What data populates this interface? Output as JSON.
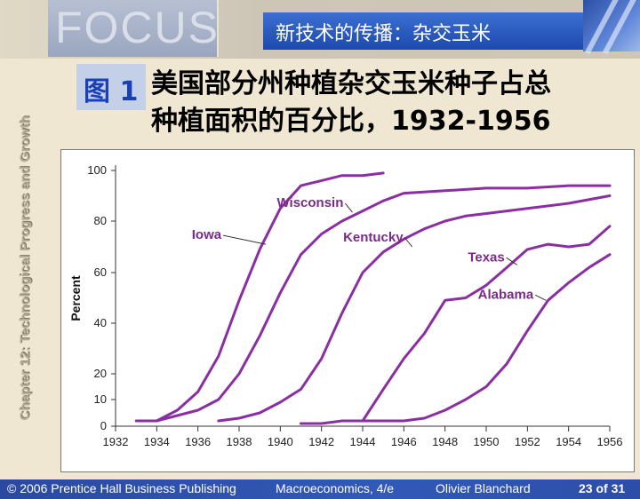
{
  "banner": {
    "focus_word": "FOCUS",
    "topic": "新技术的传播：杂交玉米"
  },
  "sidebar": {
    "vertical_title": "Chapter 12: Technological Progress and Growth"
  },
  "figure": {
    "label": "图 1",
    "title_line1": "美国部分州种植杂交玉米种子占总",
    "title_line2": "种植面积的百分比，1932-1956"
  },
  "chart_data": {
    "type": "line",
    "ylabel": "Percent",
    "xlim": [
      1932,
      1956
    ],
    "ylim": [
      0,
      100
    ],
    "x_ticks": [
      1932,
      1934,
      1936,
      1938,
      1940,
      1942,
      1944,
      1946,
      1948,
      1950,
      1952,
      1954,
      1956
    ],
    "y_ticks": [
      0,
      10,
      20,
      40,
      60,
      80,
      100
    ],
    "line_color": "#8a2fa3",
    "series": [
      {
        "name": "Iowa",
        "x": [
          1933,
          1934,
          1935,
          1936,
          1937,
          1938,
          1939,
          1940,
          1941,
          1942,
          1943,
          1944,
          1945
        ],
        "y": [
          2,
          2,
          6,
          13,
          27,
          49,
          69,
          85,
          94,
          96,
          98,
          98,
          99
        ],
        "label_anchor": [
          1939.3,
          71
        ]
      },
      {
        "name": "Wisconsin",
        "x": [
          1934,
          1935,
          1936,
          1937,
          1938,
          1939,
          1940,
          1941,
          1942,
          1943,
          1944,
          1945,
          1946,
          1948,
          1950,
          1952,
          1954,
          1956
        ],
        "y": [
          2,
          4,
          6,
          10,
          20,
          35,
          52,
          67,
          75,
          80,
          84,
          88,
          91,
          92,
          93,
          93,
          94,
          94
        ],
        "label_anchor": [
          1943.5,
          83.5
        ]
      },
      {
        "name": "Kentucky",
        "x": [
          1937,
          1938,
          1939,
          1940,
          1941,
          1942,
          1943,
          1944,
          1945,
          1946,
          1947,
          1948,
          1949,
          1950,
          1952,
          1954,
          1956
        ],
        "y": [
          2,
          3,
          5,
          9,
          14,
          26,
          44,
          60,
          68,
          73,
          77,
          80,
          82,
          83,
          85,
          87,
          90
        ],
        "label_anchor": [
          1946.4,
          70
        ]
      },
      {
        "name": "Texas",
        "x": [
          1944,
          1945,
          1946,
          1947,
          1948,
          1949,
          1950,
          1951,
          1952,
          1953,
          1954,
          1955,
          1956
        ],
        "y": [
          2,
          14,
          26,
          36,
          49,
          50,
          55,
          62,
          69,
          71,
          70,
          71,
          78
        ],
        "label_anchor": [
          1951.5,
          63
        ]
      },
      {
        "name": "Alabama",
        "x": [
          1941,
          1942,
          1943,
          1944,
          1945,
          1946,
          1947,
          1948,
          1949,
          1950,
          1951,
          1952,
          1953,
          1954,
          1955,
          1956
        ],
        "y": [
          1,
          1,
          2,
          2,
          2,
          2,
          3,
          6,
          10,
          15,
          24,
          37,
          49,
          56,
          62,
          67
        ],
        "label_anchor": [
          1952.9,
          49
        ]
      }
    ]
  },
  "footer": {
    "copyright": "© 2006 Prentice Hall Business Publishing",
    "book": "Macroeconomics, 4/e",
    "author": "Olivier Blanchard",
    "page": "23 of 31"
  }
}
